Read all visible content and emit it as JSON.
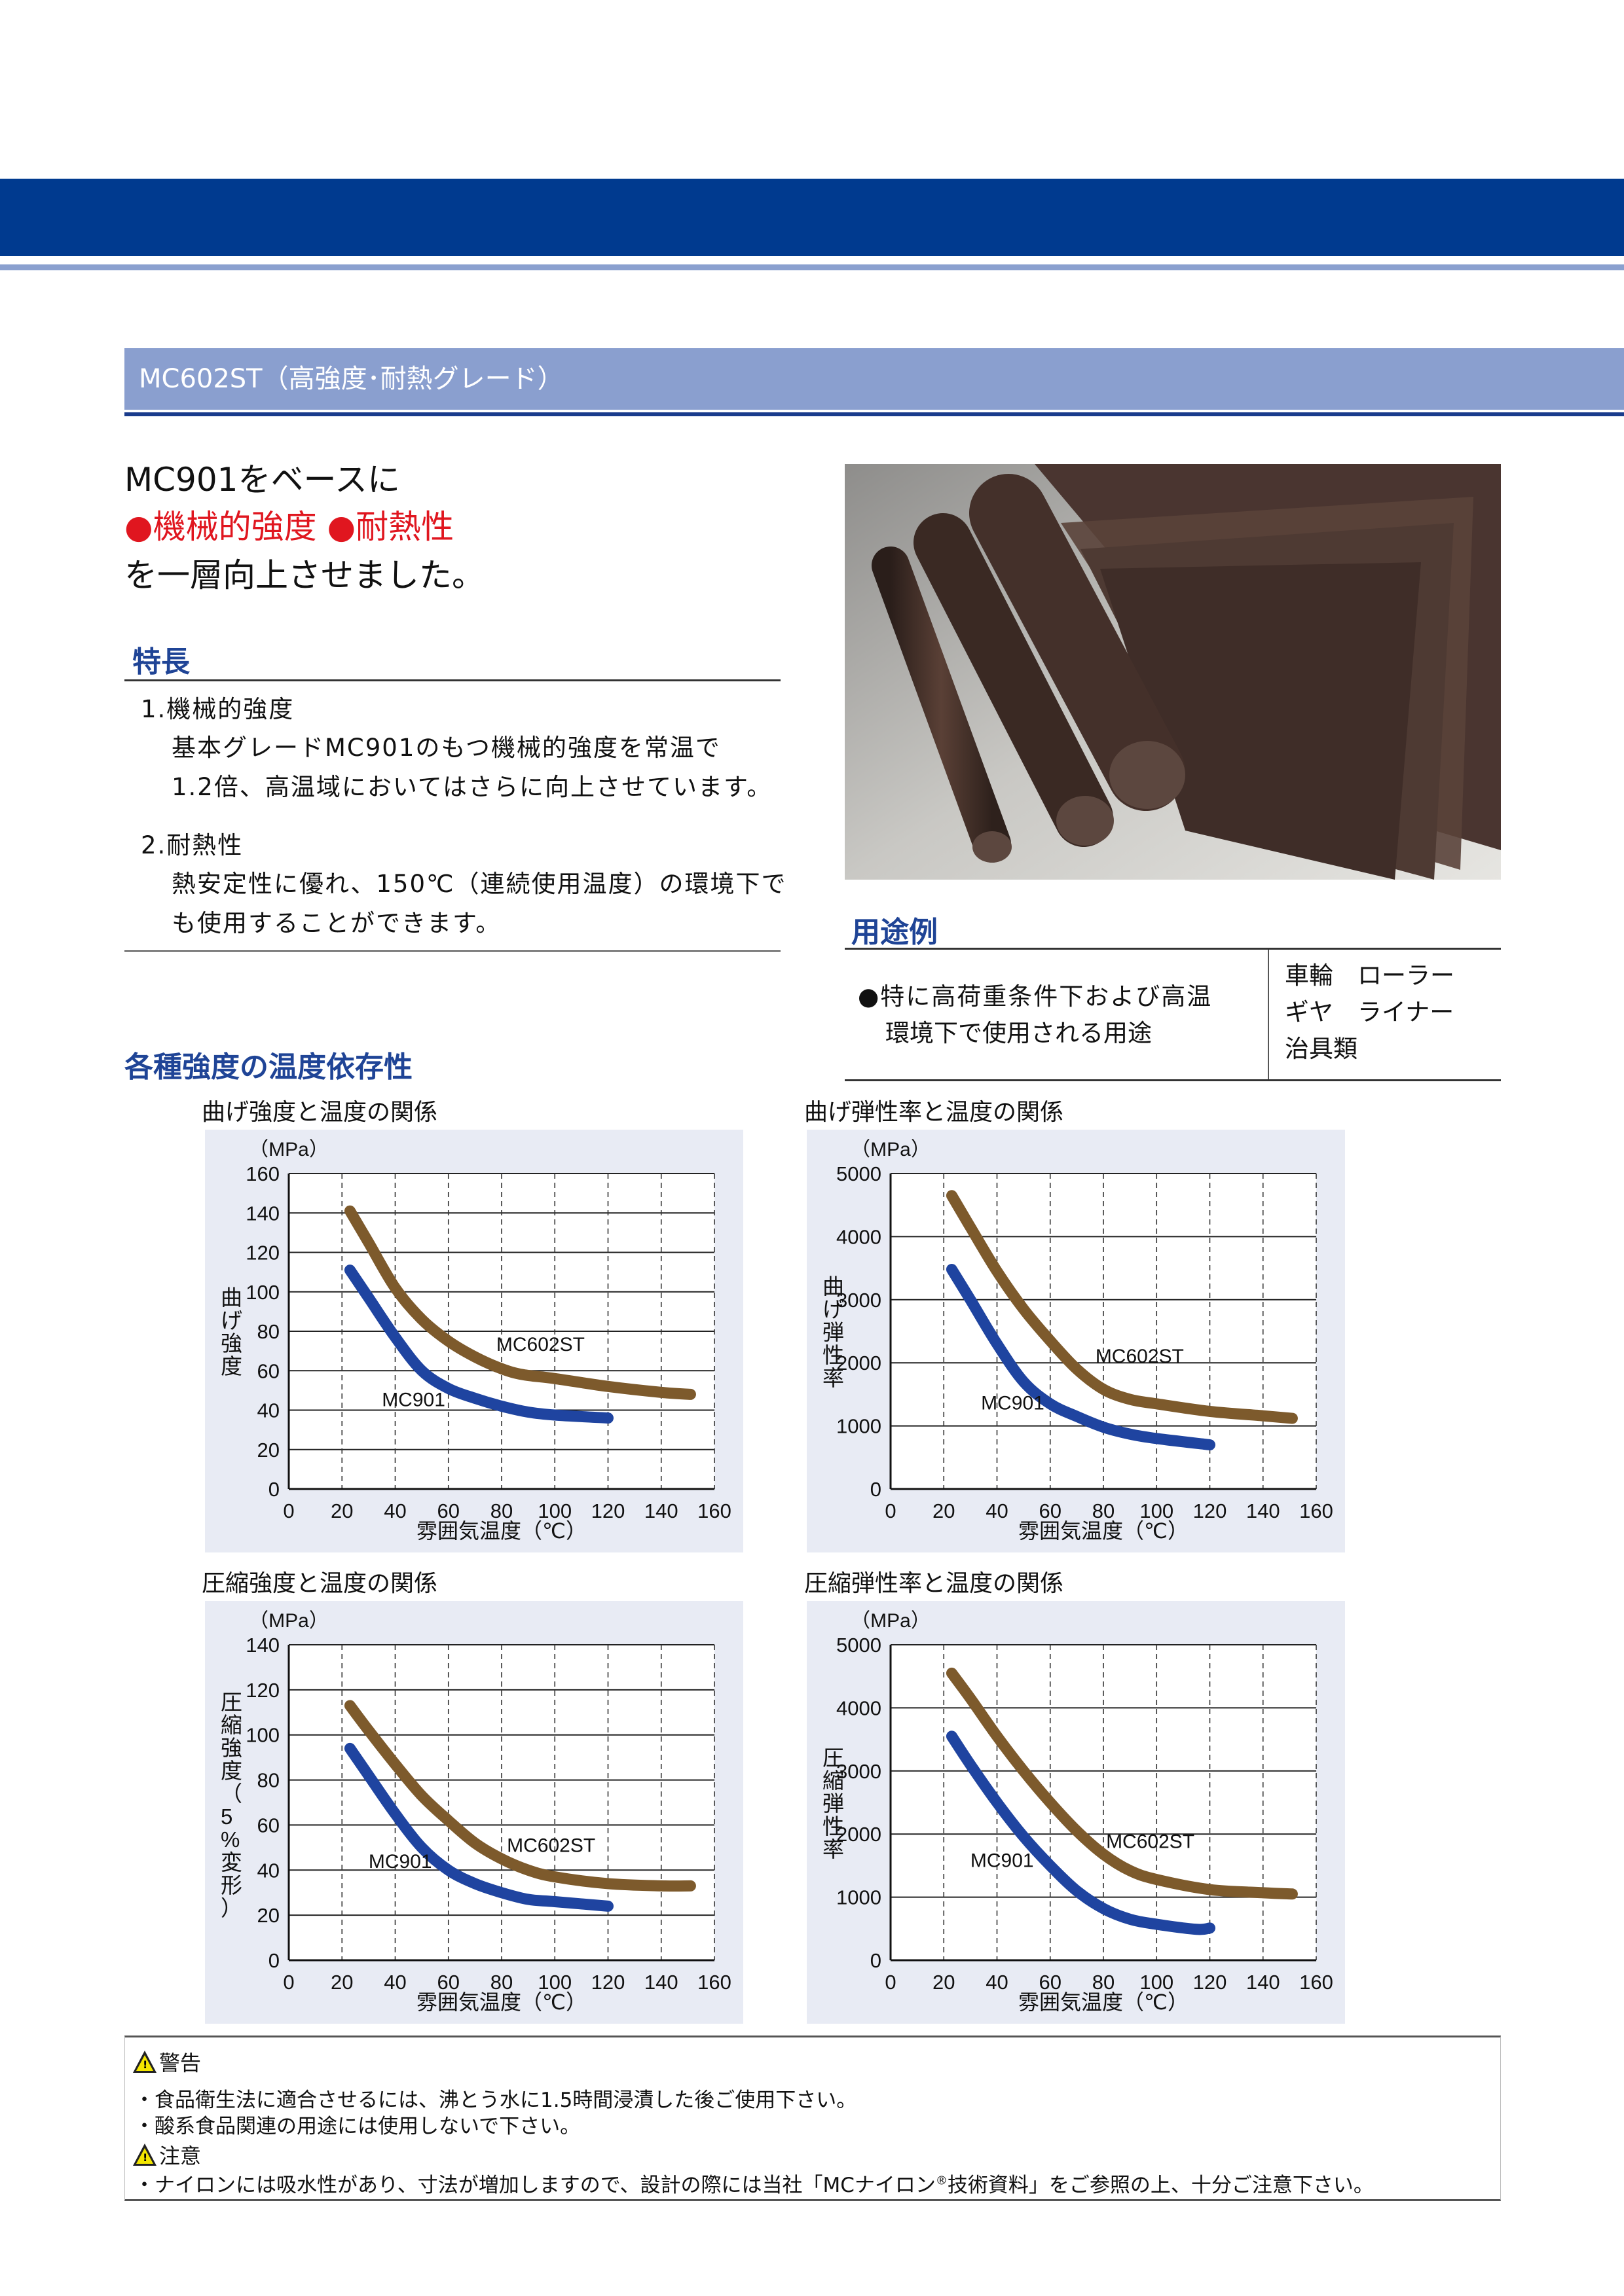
{
  "section_title": "MC602ST（高強度･耐熱グレード）",
  "headline": {
    "line1": "MC901をベースに",
    "bullet1": "●機械的強度",
    "bullet2": "●耐熱性",
    "line3": "を一層向上させました。"
  },
  "features": {
    "title": "特長",
    "items": [
      {
        "heading": "1.機械的強度",
        "lines": [
          "基本グレードMC901のもつ機械的強度を常温で",
          "1.2倍、高温域においてはさらに向上させています。"
        ]
      },
      {
        "heading": "2.耐熱性",
        "lines": [
          "熱安定性に優れ、150℃（連続使用温度）の環境下で",
          "も使用することができます。"
        ]
      }
    ]
  },
  "applications": {
    "title": "用途例",
    "description": [
      "●特に高荷重条件下および高温",
      "環境下で使用される用途"
    ],
    "examples": [
      "車輪　ローラー",
      "ギヤ　ライナー",
      "治具類"
    ]
  },
  "charts_section_title": "各種強度の温度依存性",
  "colors": {
    "mc602st": "#7d5a2c",
    "mc901": "#1f44a0",
    "banner": "#003a8f",
    "accent_red": "#e0161f"
  },
  "chart_data": [
    {
      "type": "line",
      "title": "曲げ強度と温度の関係",
      "unit": "（MPa）",
      "ylabel": "曲げ強度",
      "xlabel": "雰囲気温度（℃）",
      "xlim": [
        0,
        160
      ],
      "ylim": [
        0,
        160
      ],
      "xticks": [
        "0",
        "20",
        "40",
        "60",
        "80",
        "100",
        "120",
        "140",
        "160"
      ],
      "yticks": [
        "0",
        "20",
        "40",
        "60",
        "80",
        "100",
        "120",
        "140",
        "160"
      ],
      "grid": true,
      "series": [
        {
          "name": "MC602ST",
          "x": [
            23,
            30,
            40,
            50,
            60,
            70,
            80,
            88,
            100,
            120,
            140,
            151
          ],
          "y": [
            141,
            125,
            102,
            86,
            75,
            67,
            61,
            58,
            56,
            52,
            49,
            48
          ]
        },
        {
          "name": "MC901",
          "x": [
            23,
            30,
            40,
            50,
            60,
            70,
            80,
            90,
            100,
            120
          ],
          "y": [
            111,
            97,
            77,
            60,
            51,
            46,
            42,
            39,
            37.5,
            36
          ]
        }
      ]
    },
    {
      "type": "line",
      "title": "曲げ弾性率と温度の関係",
      "unit": "（MPa）",
      "ylabel": "曲げ弾性率",
      "xlabel": "雰囲気温度（℃）",
      "xlim": [
        0,
        160
      ],
      "ylim": [
        0,
        5000
      ],
      "xticks": [
        "0",
        "20",
        "40",
        "60",
        "80",
        "100",
        "120",
        "140",
        "160"
      ],
      "yticks": [
        "0",
        "1000",
        "2000",
        "3000",
        "4000",
        "5000"
      ],
      "grid": true,
      "series": [
        {
          "name": "MC602ST",
          "x": [
            23,
            30,
            40,
            50,
            60,
            70,
            80,
            90,
            100,
            120,
            140,
            151
          ],
          "y": [
            4650,
            4150,
            3450,
            2850,
            2350,
            1900,
            1580,
            1420,
            1350,
            1230,
            1160,
            1120
          ]
        },
        {
          "name": "MC901",
          "x": [
            23,
            30,
            40,
            50,
            60,
            70,
            80,
            90,
            100,
            120
          ],
          "y": [
            3480,
            3000,
            2300,
            1700,
            1350,
            1150,
            980,
            870,
            800,
            700
          ]
        }
      ]
    },
    {
      "type": "line",
      "title": "圧縮強度と温度の関係",
      "unit": "（MPa）",
      "ylabel": "圧縮強度（5%変形）",
      "xlabel": "雰囲気温度（℃）",
      "xlim": [
        0,
        160
      ],
      "ylim": [
        0,
        140
      ],
      "xticks": [
        "0",
        "20",
        "40",
        "60",
        "80",
        "100",
        "120",
        "140",
        "160"
      ],
      "yticks": [
        "0",
        "20",
        "40",
        "60",
        "80",
        "100",
        "120",
        "140"
      ],
      "grid": true,
      "series": [
        {
          "name": "MC602ST",
          "x": [
            23,
            30,
            40,
            50,
            60,
            70,
            80,
            90,
            100,
            120,
            140,
            151
          ],
          "y": [
            113,
            102,
            87,
            73,
            62,
            52,
            45,
            40,
            37,
            34,
            33,
            33
          ]
        },
        {
          "name": "MC901",
          "x": [
            23,
            30,
            40,
            50,
            60,
            70,
            80,
            90,
            100,
            120
          ],
          "y": [
            94,
            82,
            65,
            50,
            40,
            34,
            30,
            27,
            26,
            24
          ]
        }
      ]
    },
    {
      "type": "line",
      "title": "圧縮弾性率と温度の関係",
      "unit": "（MPa）",
      "ylabel": "圧縮弾性率",
      "xlabel": "雰囲気温度（℃）",
      "xlim": [
        0,
        160
      ],
      "ylim": [
        0,
        5000
      ],
      "xticks": [
        "0",
        "20",
        "40",
        "60",
        "80",
        "100",
        "120",
        "140",
        "160"
      ],
      "yticks": [
        "0",
        "1000",
        "2000",
        "3000",
        "4000",
        "5000"
      ],
      "grid": true,
      "series": [
        {
          "name": "MC602ST",
          "x": [
            23,
            30,
            40,
            50,
            60,
            70,
            80,
            90,
            100,
            120,
            140,
            151
          ],
          "y": [
            4550,
            4150,
            3550,
            3000,
            2500,
            2050,
            1680,
            1420,
            1280,
            1120,
            1070,
            1050
          ]
        },
        {
          "name": "MC901",
          "x": [
            23,
            30,
            40,
            50,
            60,
            70,
            80,
            90,
            100,
            115,
            120
          ],
          "y": [
            3550,
            3100,
            2500,
            1960,
            1500,
            1100,
            820,
            650,
            570,
            490,
            510
          ]
        }
      ]
    }
  ],
  "warnings": {
    "warning_title": "警告",
    "warning_lines": [
      "・食品衛生法に適合させるには、沸とう水に1.5時間浸漬した後ご使用下さい。",
      "・酸系食品関連の用途には使用しないで下さい。"
    ],
    "caution_title": "注意",
    "caution_pre": "・ナイロンには吸水性があり、寸法が増加しますので、設計の際には当社「MCナイロン",
    "caution_reg": "®",
    "caution_post": "技術資料」をご参照の上、十分ご注意下さい。"
  }
}
